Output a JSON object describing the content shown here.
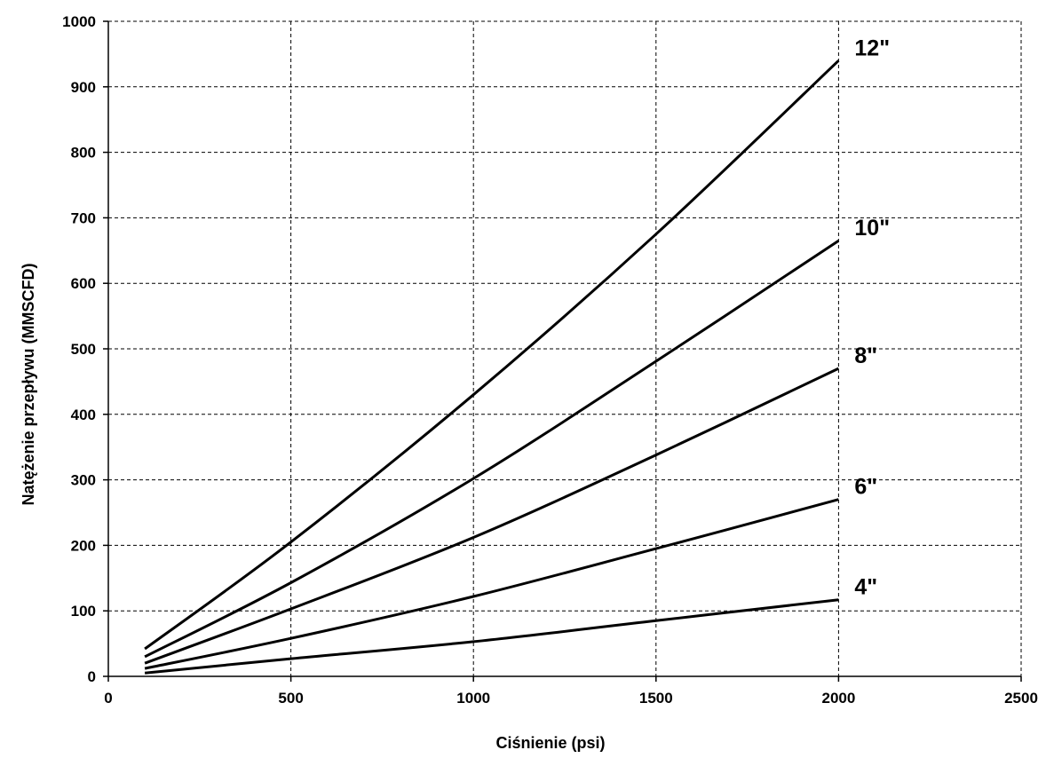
{
  "chart_data": {
    "type": "line",
    "xlabel": "Ciśnienie (psi)",
    "ylabel": "Natężenie przepływu (MMSCFD)",
    "xlim": [
      0,
      2500
    ],
    "ylim": [
      0,
      1000
    ],
    "x_ticks": [
      0,
      500,
      1000,
      1500,
      2000,
      2500
    ],
    "y_ticks": [
      0,
      100,
      200,
      300,
      400,
      500,
      600,
      700,
      800,
      900,
      1000
    ],
    "grid": true,
    "x": [
      100,
      500,
      1000,
      1500,
      2000
    ],
    "series": [
      {
        "name": "4\"",
        "values": [
          5,
          27,
          53,
          85,
          117
        ]
      },
      {
        "name": "6\"",
        "values": [
          12,
          58,
          122,
          195,
          270
        ]
      },
      {
        "name": "8\"",
        "values": [
          20,
          103,
          212,
          338,
          470
        ]
      },
      {
        "name": "10\"",
        "values": [
          30,
          143,
          302,
          481,
          665
        ]
      },
      {
        "name": "12\"",
        "values": [
          42,
          205,
          430,
          675,
          940
        ]
      }
    ]
  }
}
